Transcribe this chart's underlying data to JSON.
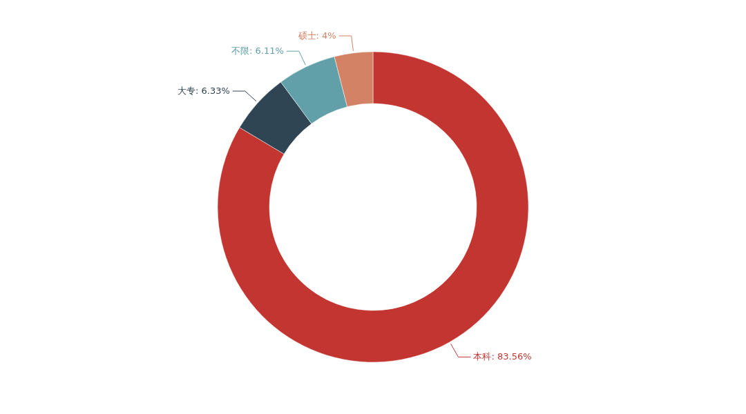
{
  "chart_data": {
    "type": "donut",
    "categories": [
      "本科",
      "大专",
      "不限",
      "硕士"
    ],
    "values": [
      83.56,
      6.33,
      6.11,
      4
    ],
    "colors": [
      "#c23531",
      "#2f4554",
      "#61a0a8",
      "#d48265"
    ],
    "value_labels": [
      "83.56%",
      "6.33%",
      "6.11%",
      "4%"
    ]
  }
}
